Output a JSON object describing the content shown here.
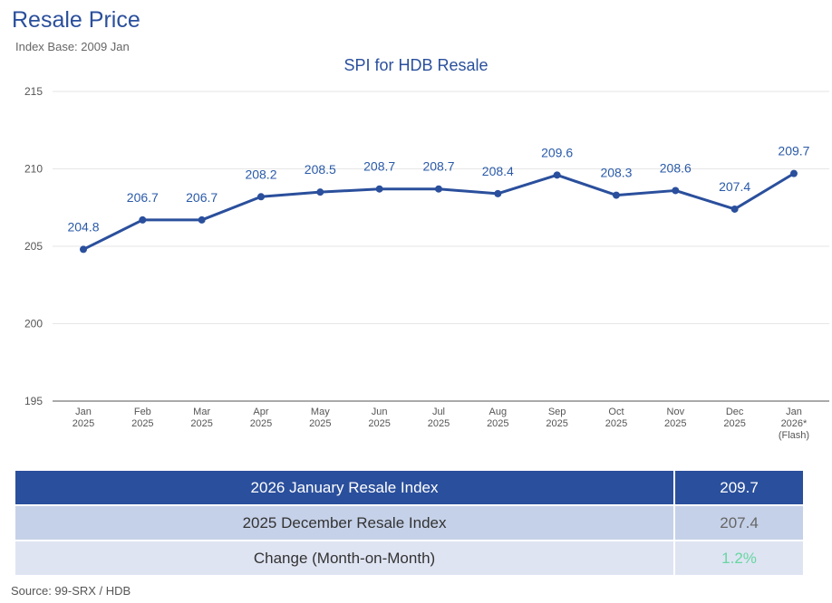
{
  "header": {
    "title": "Resale Price",
    "subtitle": "Index Base: 2009 Jan"
  },
  "chart_data": {
    "type": "line",
    "title": "SPI for HDB Resale",
    "xlabel": "",
    "ylabel": "",
    "ylim": [
      195,
      215
    ],
    "yticks": [
      195,
      200,
      205,
      210,
      215
    ],
    "grid": true,
    "categories": [
      [
        "Jan",
        "2025"
      ],
      [
        "Feb",
        "2025"
      ],
      [
        "Mar",
        "2025"
      ],
      [
        "Apr",
        "2025"
      ],
      [
        "May",
        "2025"
      ],
      [
        "Jun",
        "2025"
      ],
      [
        "Jul",
        "2025"
      ],
      [
        "Aug",
        "2025"
      ],
      [
        "Sep",
        "2025"
      ],
      [
        "Oct",
        "2025"
      ],
      [
        "Nov",
        "2025"
      ],
      [
        "Dec",
        "2025"
      ],
      [
        "Jan",
        "2026*",
        "(Flash)"
      ]
    ],
    "series": [
      {
        "name": "SPI for HDB Resale",
        "values": [
          204.8,
          206.7,
          206.7,
          208.2,
          208.5,
          208.7,
          208.7,
          208.4,
          209.6,
          208.3,
          208.6,
          207.4,
          209.7
        ],
        "labels": [
          "204.8",
          "206.7",
          "206.7",
          "208.2",
          "208.5",
          "208.7",
          "208.7",
          "208.4",
          "209.6",
          "208.3",
          "208.6",
          "207.4",
          "209.7"
        ]
      }
    ],
    "colors": {
      "line": "#2a4f9c",
      "label": "#2a5aa8",
      "grid": "#e6e6e6",
      "axis": "#555555",
      "tick": "#555555"
    }
  },
  "summary": {
    "rows": [
      {
        "label": "2026 January Resale Index",
        "value": "209.7"
      },
      {
        "label": "2025 December Resale Index",
        "value": "207.4"
      },
      {
        "label": "Change (Month-on-Month)",
        "value": "1.2%"
      }
    ]
  },
  "footer": {
    "source": "Source: 99-SRX / HDB"
  }
}
